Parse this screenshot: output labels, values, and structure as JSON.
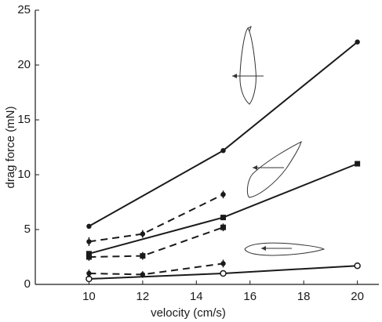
{
  "chart_data": {
    "type": "line",
    "xlabel": "velocity (cm/s)",
    "ylabel": "drag force (mN)",
    "xlim": [
      8,
      20.8
    ],
    "xticks": [
      10,
      12,
      14,
      16,
      18,
      20
    ],
    "ylim": [
      0,
      25
    ],
    "yticks": [
      0,
      5,
      10,
      15,
      20,
      25
    ],
    "series": [
      {
        "color": "#1a1a1a",
        "marker": "circle",
        "dashed": false,
        "x": [
          10,
          15,
          20
        ],
        "values": [
          5.3,
          12.2,
          22.1
        ]
      },
      {
        "color": "#1a1a1a",
        "marker": "square",
        "dashed": false,
        "x": [
          10,
          15,
          20
        ],
        "values": [
          2.8,
          6.1,
          11.0
        ]
      },
      {
        "color": "#1a1a1a",
        "marker": "open-circle",
        "dashed": false,
        "x": [
          10,
          15,
          20
        ],
        "values": [
          0.5,
          1.0,
          1.7
        ]
      },
      {
        "color": "#1a1a1a",
        "marker": "circle",
        "dashed": true,
        "x": [
          10,
          12,
          15
        ],
        "values": [
          3.9,
          4.6,
          8.2
        ],
        "errors": [
          0.4,
          0.35,
          0.35
        ]
      },
      {
        "color": "#1a1a1a",
        "marker": "square",
        "dashed": true,
        "x": [
          10,
          12,
          15
        ],
        "values": [
          2.5,
          2.6,
          5.2
        ],
        "errors": [
          0.35,
          0.35,
          0.35
        ]
      },
      {
        "color": "#1a1a1a",
        "marker": "circle",
        "dashed": true,
        "x": [
          10,
          12,
          15
        ],
        "values": [
          1.0,
          0.9,
          1.9
        ],
        "errors": [
          0.35,
          0.3,
          0.35
        ]
      }
    ]
  }
}
